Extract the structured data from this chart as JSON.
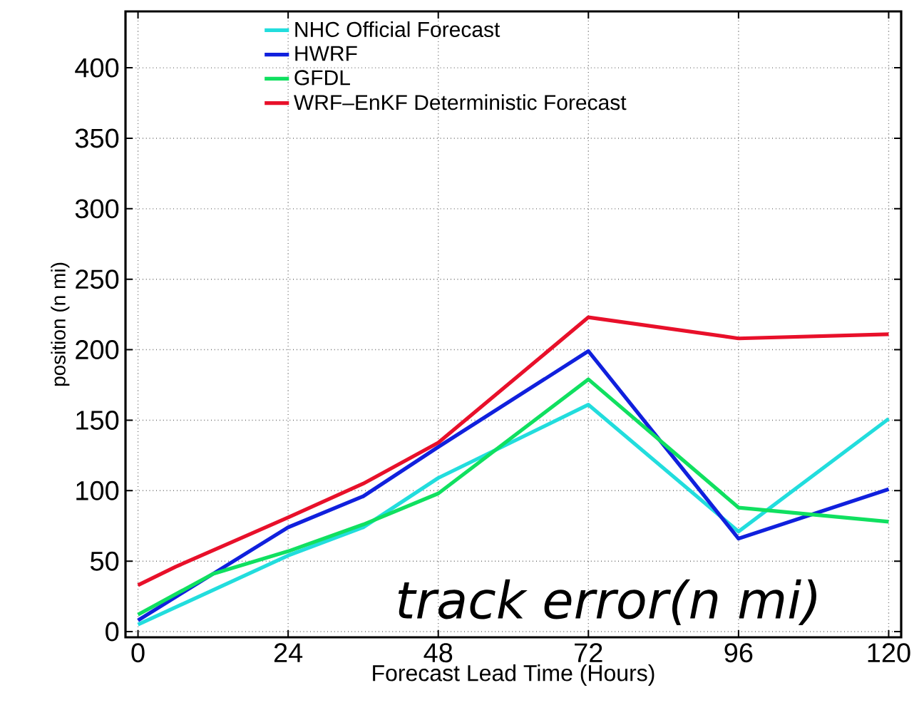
{
  "chart_data": {
    "type": "line",
    "xlabel": "Forecast Lead Time (Hours)",
    "ylabel": "position (n mi)",
    "xlim": [
      -2,
      122
    ],
    "ylim": [
      -4,
      440
    ],
    "xticks": [
      0,
      24,
      48,
      72,
      96,
      120
    ],
    "yticks": [
      0,
      50,
      100,
      150,
      200,
      250,
      300,
      350,
      400
    ],
    "grid": true,
    "legend": "top left",
    "marker": "none",
    "line_style": "solid",
    "annotations": [
      "track  error(n mi)"
    ],
    "series": [
      {
        "name": "NHC Official Forecast",
        "color": "#22dddd",
        "x": [
          0,
          24,
          36,
          48,
          72,
          96,
          120
        ],
        "values": [
          5,
          54,
          74,
          109,
          161,
          71,
          151
        ]
      },
      {
        "name": "HWRF",
        "color": "#1020dd",
        "x": [
          0,
          12,
          24,
          36,
          48,
          72,
          96,
          120
        ],
        "values": [
          8,
          41,
          74,
          96,
          131,
          199,
          66,
          101
        ]
      },
      {
        "name": "GFDL",
        "color": "#10e060",
        "x": [
          0,
          12,
          24,
          36,
          48,
          72,
          96,
          120
        ],
        "values": [
          12,
          41,
          57,
          76,
          98,
          179,
          88,
          78
        ]
      },
      {
        "name": "WRF–EnKF Deterministic Forecast",
        "color": "#e8102a",
        "x": [
          0,
          6,
          24,
          36,
          48,
          72,
          96,
          120
        ],
        "values": [
          33,
          46,
          81,
          105,
          134,
          223,
          208,
          211
        ]
      }
    ]
  }
}
